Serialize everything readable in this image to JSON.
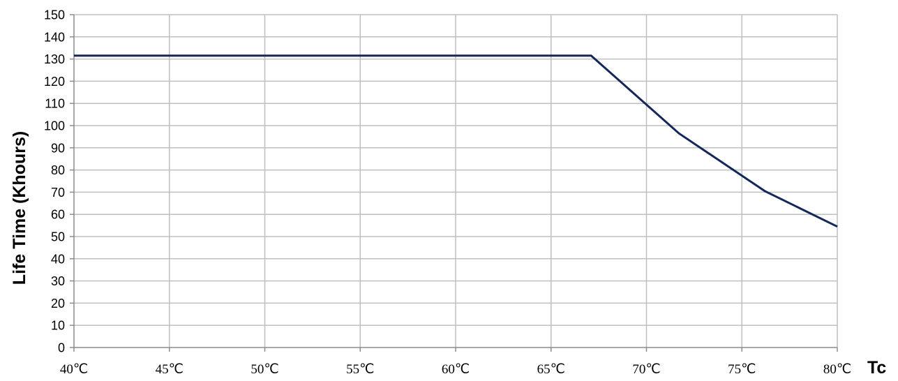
{
  "chart_data": {
    "type": "line",
    "title": "",
    "ylabel": "Life Time (Khours)",
    "xlabel": "Tc",
    "xlim": [
      40,
      80
    ],
    "ylim": [
      0,
      150
    ],
    "x_ticks": [
      40,
      45,
      50,
      55,
      60,
      65,
      70,
      75,
      80
    ],
    "x_tick_labels": [
      "40℃",
      "45℃",
      "50℃",
      "55℃",
      "60℃",
      "65℃",
      "70℃",
      "75℃",
      "80℃"
    ],
    "y_ticks": [
      0,
      10,
      20,
      30,
      40,
      50,
      60,
      70,
      80,
      90,
      100,
      110,
      120,
      130,
      140,
      150
    ],
    "y_tick_labels": [
      "0",
      "10",
      "20",
      "30",
      "40",
      "50",
      "60",
      "70",
      "80",
      "90",
      "100",
      "110",
      "120",
      "130",
      "140",
      "150"
    ],
    "grid": true,
    "legend": "none",
    "series": [
      {
        "color": "#14275a",
        "points": [
          {
            "x": 40,
            "y": 131.5
          },
          {
            "x": 67.1,
            "y": 131.5
          },
          {
            "x": 71.7,
            "y": 96.5
          },
          {
            "x": 76.2,
            "y": 70.5
          },
          {
            "x": 80,
            "y": 54.5
          }
        ]
      }
    ]
  }
}
